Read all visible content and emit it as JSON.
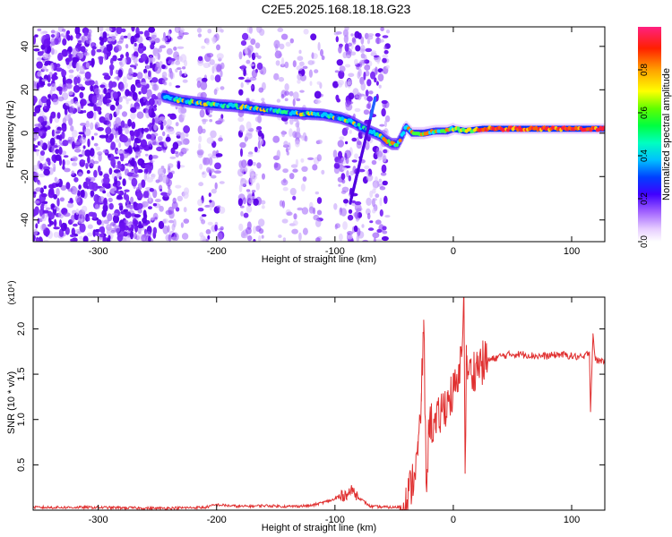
{
  "title": "C2E5.2025.168.18.18.G23",
  "chart_data": [
    {
      "type": "heatmap",
      "xlabel": "Height of straight line (km)",
      "ylabel": "Frequency (Hz)",
      "xlim": [
        -355,
        128
      ],
      "ylim": [
        -50,
        49
      ],
      "x_ticks": [
        -300,
        -200,
        -100,
        0,
        100
      ],
      "y_ticks": [
        -40,
        -20,
        0,
        20,
        40
      ],
      "colorbar": {
        "label": "Normalized spectral amplitude",
        "range": [
          0.0,
          1.0
        ],
        "ticks": [
          0.0,
          0.2,
          0.4,
          0.6,
          0.8
        ]
      },
      "ridge": {
        "x": [
          -245,
          -230,
          -215,
          -200,
          -185,
          -170,
          -155,
          -140,
          -125,
          -110,
          -95,
          -85,
          -75,
          -62,
          -58,
          -52,
          -47,
          -44,
          -40,
          -35,
          -25,
          -15,
          -5,
          0,
          10,
          25,
          40,
          60,
          80,
          100,
          115,
          128
        ],
        "y": [
          17,
          15,
          14,
          13,
          12.5,
          11.5,
          10.5,
          9.5,
          9,
          8.5,
          7,
          5,
          2,
          -1,
          -3,
          -5,
          -5,
          -2,
          3,
          0,
          0,
          1,
          1,
          2,
          1,
          2,
          2,
          2,
          2,
          2,
          2,
          2
        ]
      }
    },
    {
      "type": "line",
      "xlabel": "Height of straight line (km)",
      "ylabel": "SNR (10 * v/v)",
      "y_multiplier": "(x10⁴)",
      "xlim": [
        -355,
        128
      ],
      "ylim": [
        0,
        2.35
      ],
      "x_ticks": [
        -300,
        -200,
        -100,
        0,
        100
      ],
      "y_ticks": [
        0.5,
        1.0,
        1.5,
        2.0
      ],
      "color": "#e03030",
      "series": [
        {
          "x": [
            -355,
            -300,
            -250,
            -210,
            -200,
            -180,
            -160,
            -140,
            -120,
            -100,
            -90,
            -85,
            -80,
            -70,
            -50,
            -40,
            -35,
            -30,
            -27,
            -25,
            -23,
            -20,
            -15,
            -10,
            -5,
            0,
            5,
            9,
            10,
            11,
            15,
            20,
            30,
            40,
            50,
            60,
            70,
            80,
            90,
            100,
            110,
            115,
            116,
            118,
            120,
            128
          ],
          "y": [
            0.03,
            0.03,
            0.02,
            0.03,
            0.06,
            0.04,
            0.05,
            0.04,
            0.05,
            0.12,
            0.18,
            0.22,
            0.14,
            0.04,
            0.03,
            0.05,
            0.3,
            0.6,
            1.2,
            2.1,
            0.3,
            1.0,
            0.9,
            1.1,
            1.2,
            1.3,
            1.4,
            2.35,
            0.45,
            1.6,
            1.5,
            1.6,
            1.65,
            1.7,
            1.72,
            1.72,
            1.7,
            1.7,
            1.72,
            1.7,
            1.68,
            1.75,
            1.1,
            1.95,
            1.65,
            1.65
          ]
        }
      ]
    }
  ]
}
